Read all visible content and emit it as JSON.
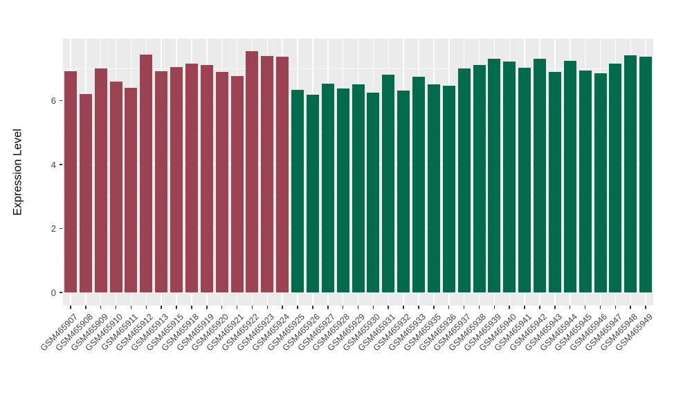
{
  "figure": {
    "ylabel": "Expression Level",
    "background": "#FFFFFF",
    "panel_background": "#EBEBEB",
    "grid_color": "#FFFFFF",
    "axis_text_color": "#404040",
    "tick_mark_color": "#333333"
  },
  "chart_data": {
    "type": "bar",
    "title": "",
    "xlabel": "",
    "ylabel": "Expression Level",
    "legend": "none",
    "grid": true,
    "ylim": [
      0,
      7.93
    ],
    "yticks": [
      0,
      2,
      4,
      6
    ],
    "yticks_minor": [
      1,
      3,
      5,
      7
    ],
    "categories": [
      "GSM465907",
      "GSM465908",
      "GSM465909",
      "GSM465910",
      "GSM465911",
      "GSM465912",
      "GSM465913",
      "GSM465915",
      "GSM465918",
      "GSM465919",
      "GSM465920",
      "GSM465921",
      "GSM465922",
      "GSM465923",
      "GSM465924",
      "GSM465925",
      "GSM465926",
      "GSM465927",
      "GSM465928",
      "GSM465929",
      "GSM465930",
      "GSM465931",
      "GSM465932",
      "GSM465933",
      "GSM465935",
      "GSM465936",
      "GSM465937",
      "GSM465938",
      "GSM465939",
      "GSM465940",
      "GSM465941",
      "GSM465942",
      "GSM465943",
      "GSM465944",
      "GSM465945",
      "GSM465946",
      "GSM465947",
      "GSM465948",
      "GSM465949"
    ],
    "values": [
      6.92,
      6.2,
      7.0,
      6.59,
      6.39,
      7.43,
      6.93,
      7.04,
      7.15,
      7.12,
      6.89,
      6.76,
      7.54,
      7.39,
      7.37,
      6.33,
      6.18,
      6.52,
      6.37,
      6.51,
      6.24,
      6.81,
      6.32,
      6.75,
      6.51,
      6.46,
      7.01,
      7.12,
      7.31,
      7.23,
      7.03,
      7.3,
      6.9,
      7.24,
      6.94,
      6.85,
      7.15,
      7.41,
      7.38
    ],
    "bar_groups": [
      "group1",
      "group1",
      "group1",
      "group1",
      "group1",
      "group1",
      "group1",
      "group1",
      "group1",
      "group1",
      "group1",
      "group1",
      "group1",
      "group1",
      "group1",
      "group2",
      "group2",
      "group2",
      "group2",
      "group2",
      "group2",
      "group2",
      "group2",
      "group2",
      "group2",
      "group2",
      "group2",
      "group2",
      "group2",
      "group2",
      "group2",
      "group2",
      "group2",
      "group2",
      "group2",
      "group2",
      "group2",
      "group2",
      "group2"
    ],
    "palette": {
      "group1": "#9B4253",
      "group2": "#036B4B"
    }
  }
}
